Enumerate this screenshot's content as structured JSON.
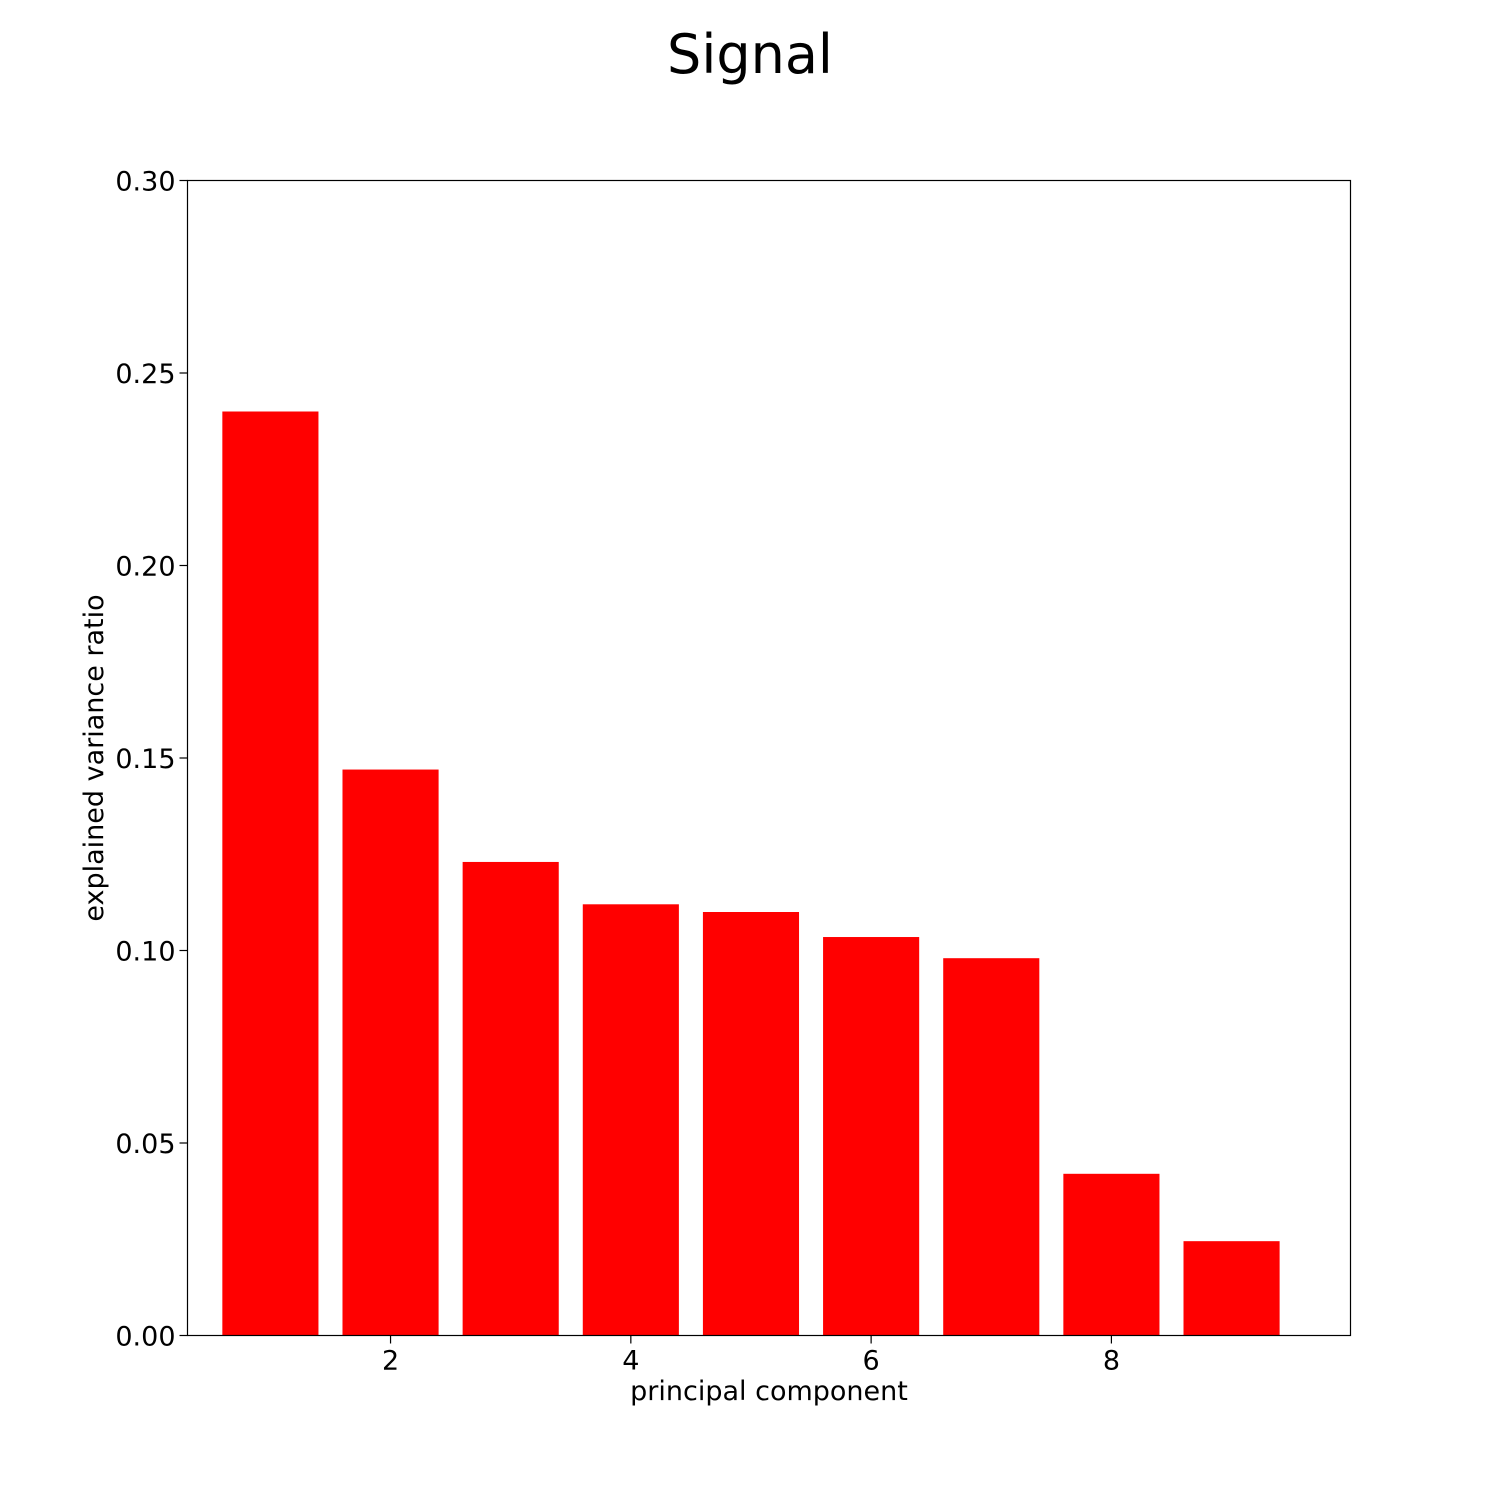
{
  "chart_data": {
    "type": "bar",
    "title": "Signal",
    "xlabel": "principal component",
    "ylabel": "explained variance ratio",
    "x": [
      1,
      2,
      3,
      4,
      5,
      6,
      7,
      8,
      9
    ],
    "values": [
      0.24,
      0.147,
      0.123,
      0.112,
      0.11,
      0.1035,
      0.098,
      0.042,
      0.0245
    ],
    "xlim": [
      0.31,
      9.99
    ],
    "ylim": [
      0,
      0.3
    ],
    "xticks": [
      2,
      4,
      6,
      8
    ],
    "xtick_labels": [
      "2",
      "4",
      "6",
      "8"
    ],
    "yticks": [
      0,
      0.05,
      0.1,
      0.15,
      0.2,
      0.25,
      0.3
    ],
    "ytick_labels": [
      "0.00",
      "0.05",
      "0.10",
      "0.15",
      "0.20",
      "0.25",
      "0.30"
    ],
    "bar_color": "#ff0000",
    "grid": false,
    "legend": "none"
  }
}
